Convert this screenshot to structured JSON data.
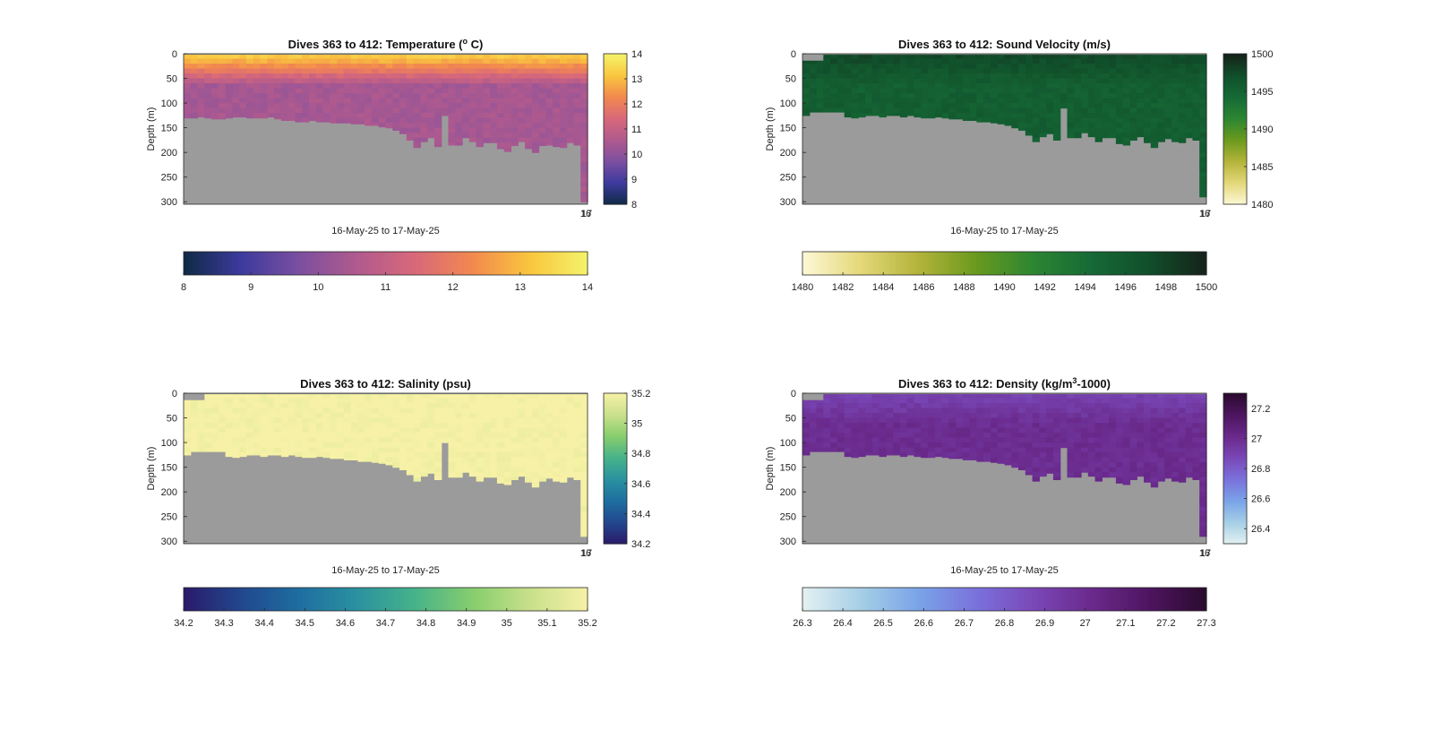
{
  "window": {
    "background": "#ffffff"
  },
  "chart_data": [
    {
      "type": "heatmap",
      "variable": "temperature",
      "title_main": "Dives 363 to 412: Temperature (",
      "title_sup": "o",
      "title_end": " C)",
      "ylabel": "Depth (m)",
      "xlabel": "16-May-25 to 17-May-25",
      "x_tick_label": "16",
      "x_tick_label_overlap": "17",
      "ylim": [
        0,
        305
      ],
      "yticks": [
        "0",
        "50",
        "100",
        "150",
        "200",
        "250",
        "300"
      ],
      "colorbar_range": [
        8,
        14
      ],
      "colorbar_ticks": [
        "8",
        "9",
        "10",
        "11",
        "12",
        "13",
        "14"
      ],
      "horizontal_colorbar_ticks": [
        "8",
        "9",
        "10",
        "11",
        "12",
        "13",
        "14"
      ],
      "colormap": [
        "#0f2a45",
        "#3d3a9e",
        "#7b4fa0",
        "#b05a8e",
        "#d8687a",
        "#f2884f",
        "#f9c63e",
        "#f4f36a"
      ],
      "surface_value": 13.3,
      "deep_value": 10.4,
      "nan_color": "#9b9b9b",
      "bottom_depths": [
        130,
        130,
        128,
        130,
        132,
        132,
        130,
        128,
        128,
        130,
        130,
        130,
        128,
        132,
        135,
        135,
        138,
        138,
        135,
        138,
        138,
        140,
        140,
        140,
        142,
        142,
        145,
        145,
        148,
        150,
        155,
        162,
        175,
        190,
        178,
        170,
        188,
        125,
        185,
        185,
        170,
        178,
        188,
        180,
        180,
        192,
        198,
        186,
        178,
        192,
        200,
        186,
        185,
        188,
        190,
        180,
        185,
        300
      ]
    },
    {
      "type": "heatmap",
      "variable": "sound_velocity",
      "title_main": "Dives 363 to 412: Sound Velocity (m/s)",
      "ylabel": "Depth (m)",
      "xlabel": "16-May-25 to 17-May-25",
      "x_tick_label": "16",
      "x_tick_label_overlap": "17",
      "ylim": [
        0,
        305
      ],
      "yticks": [
        "0",
        "50",
        "100",
        "150",
        "200",
        "250",
        "300"
      ],
      "colorbar_range": [
        1480,
        1500
      ],
      "colorbar_ticks": [
        "1480",
        "1485",
        "1490",
        "1495",
        "1500"
      ],
      "horizontal_colorbar_ticks": [
        "1480",
        "1482",
        "1484",
        "1486",
        "1488",
        "1490",
        "1492",
        "1494",
        "1496",
        "1498",
        "1500"
      ],
      "colormap": [
        "#fdf8d6",
        "#e4d87a",
        "#b4b43a",
        "#6a9a1e",
        "#2c8632",
        "#166a36",
        "#114f2b",
        "#15221a"
      ],
      "surface_value": 1497.5,
      "deep_value": 1495.5,
      "nan_color": "#9b9b9b",
      "bottom_depths": [
        125,
        118,
        118,
        118,
        118,
        118,
        128,
        130,
        128,
        125,
        125,
        128,
        125,
        125,
        128,
        125,
        128,
        130,
        130,
        128,
        130,
        132,
        132,
        135,
        135,
        138,
        138,
        140,
        142,
        145,
        150,
        155,
        165,
        178,
        168,
        162,
        175,
        110,
        170,
        170,
        160,
        168,
        178,
        170,
        170,
        182,
        185,
        175,
        168,
        180,
        190,
        178,
        172,
        178,
        180,
        170,
        175,
        290
      ]
    },
    {
      "type": "heatmap",
      "variable": "salinity",
      "title_main": "Dives 363 to 412: Salinity (psu)",
      "ylabel": "Depth (m)",
      "xlabel": "16-May-25 to 17-May-25",
      "x_tick_label": "16",
      "x_tick_label_overlap": "17",
      "ylim": [
        0,
        305
      ],
      "yticks": [
        "0",
        "50",
        "100",
        "150",
        "200",
        "250",
        "300"
      ],
      "colorbar_range": [
        34.2,
        35.2
      ],
      "colorbar_ticks": [
        "34.2",
        "34.4",
        "34.6",
        "34.8",
        "35",
        "35.2"
      ],
      "horizontal_colorbar_ticks": [
        "34.2",
        "34.3",
        "34.4",
        "34.5",
        "34.6",
        "34.7",
        "34.8",
        "34.9",
        "35",
        "35.1",
        "35.2"
      ],
      "colormap": [
        "#2a1a6a",
        "#22478e",
        "#1e6ea0",
        "#2a91a0",
        "#46b28a",
        "#86cd6e",
        "#c8e08a",
        "#f6f1a6"
      ],
      "surface_value": 35.2,
      "deep_value": 35.2,
      "nan_color": "#9b9b9b",
      "bottom_depths": [
        125,
        118,
        118,
        118,
        118,
        118,
        128,
        130,
        128,
        125,
        125,
        128,
        125,
        125,
        128,
        125,
        128,
        130,
        130,
        128,
        130,
        132,
        132,
        135,
        135,
        138,
        138,
        140,
        142,
        145,
        150,
        155,
        165,
        178,
        168,
        162,
        175,
        100,
        170,
        170,
        160,
        168,
        178,
        170,
        170,
        182,
        185,
        175,
        168,
        180,
        190,
        178,
        172,
        178,
        180,
        170,
        175,
        290
      ]
    },
    {
      "type": "heatmap",
      "variable": "density",
      "title_main": "Dives 363 to 412: Density (kg/m",
      "title_sup": "3",
      "title_end": "-1000)",
      "ylabel": "Depth (m)",
      "xlabel": "16-May-25 to 17-May-25",
      "x_tick_label": "16",
      "x_tick_label_overlap": "17",
      "ylim": [
        0,
        305
      ],
      "yticks": [
        "0",
        "50",
        "100",
        "150",
        "200",
        "250",
        "300"
      ],
      "colorbar_range": [
        26.3,
        27.3
      ],
      "colorbar_ticks": [
        "26.4",
        "26.6",
        "26.8",
        "27",
        "27.2"
      ],
      "horizontal_colorbar_ticks": [
        "26.3",
        "26.4",
        "26.5",
        "26.6",
        "26.7",
        "26.8",
        "26.9",
        "27",
        "27.1",
        "27.2",
        "27.3"
      ],
      "colormap": [
        "#e4f1f2",
        "#a6cfe6",
        "#7aa4e8",
        "#7a72dc",
        "#7a48b8",
        "#6a2a8c",
        "#4e1560",
        "#2a0b2e"
      ],
      "surface_value": 26.9,
      "deep_value": 27.0,
      "nan_color": "#9b9b9b",
      "bottom_depths": [
        125,
        118,
        118,
        118,
        118,
        118,
        128,
        130,
        128,
        125,
        125,
        128,
        125,
        125,
        128,
        125,
        128,
        130,
        130,
        128,
        130,
        132,
        132,
        135,
        135,
        138,
        138,
        140,
        142,
        145,
        150,
        155,
        165,
        178,
        168,
        162,
        175,
        110,
        170,
        170,
        160,
        168,
        178,
        170,
        170,
        182,
        185,
        175,
        168,
        180,
        190,
        178,
        172,
        178,
        180,
        170,
        175,
        290
      ]
    }
  ]
}
